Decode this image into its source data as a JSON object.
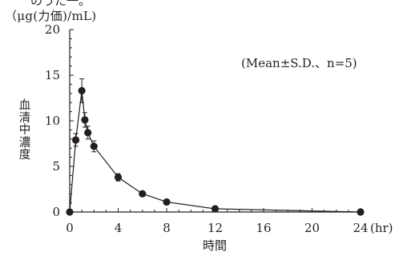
{
  "header": {
    "text_fragment": "のうた一。"
  },
  "chart_data": {
    "type": "line",
    "unit_label": "（μg(力価)/mL)",
    "ylabel": "血清中濃度",
    "xlabel": "時間",
    "x_unit": "(hr)",
    "annotation": "(Mean±S.D.、n=5)",
    "xlim": [
      0,
      24
    ],
    "ylim": [
      0,
      20
    ],
    "xticks": [
      0,
      4,
      8,
      12,
      16,
      20,
      24
    ],
    "yticks": [
      0,
      5,
      10,
      15,
      20
    ],
    "grid": false,
    "series": [
      {
        "x": [
          0,
          0.5,
          1,
          1.25,
          1.5,
          2,
          4,
          6,
          8,
          12,
          24
        ],
        "y": [
          0,
          7.9,
          13.3,
          10.1,
          8.7,
          7.2,
          3.8,
          2.0,
          1.1,
          0.35,
          0
        ],
        "sd": [
          0,
          0.7,
          1.3,
          0.8,
          0.7,
          0.6,
          0.4,
          0.2,
          0.15,
          0.05,
          0
        ]
      }
    ],
    "colors": {
      "marker": "#231f20",
      "line": "#231f20",
      "axis": "#231f20"
    }
  }
}
